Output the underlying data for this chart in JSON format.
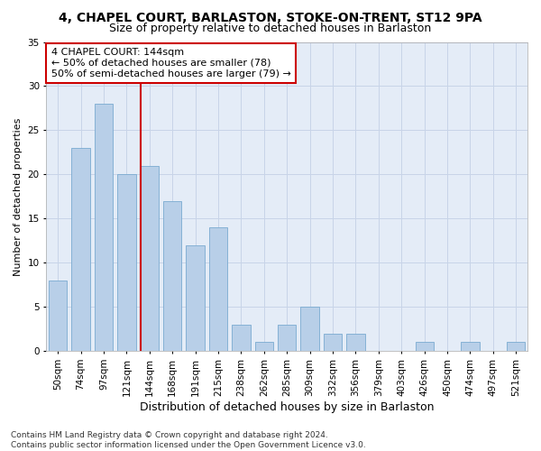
{
  "title1": "4, CHAPEL COURT, BARLASTON, STOKE-ON-TRENT, ST12 9PA",
  "title2": "Size of property relative to detached houses in Barlaston",
  "xlabel": "Distribution of detached houses by size in Barlaston",
  "ylabel": "Number of detached properties",
  "categories": [
    "50sqm",
    "74sqm",
    "97sqm",
    "121sqm",
    "144sqm",
    "168sqm",
    "191sqm",
    "215sqm",
    "238sqm",
    "262sqm",
    "285sqm",
    "309sqm",
    "332sqm",
    "356sqm",
    "379sqm",
    "403sqm",
    "426sqm",
    "450sqm",
    "474sqm",
    "497sqm",
    "521sqm"
  ],
  "values": [
    8,
    23,
    28,
    20,
    21,
    17,
    12,
    14,
    3,
    1,
    3,
    5,
    2,
    2,
    0,
    0,
    1,
    0,
    1,
    0,
    1
  ],
  "bar_color": "#b8cfe8",
  "bar_edge_color": "#7aaad0",
  "vline_color": "#cc0000",
  "vline_index": 4,
  "annotation_text": "4 CHAPEL COURT: 144sqm\n← 50% of detached houses are smaller (78)\n50% of semi-detached houses are larger (79) →",
  "annotation_box_facecolor": "#ffffff",
  "annotation_box_edgecolor": "#cc0000",
  "ylim": [
    0,
    35
  ],
  "yticks": [
    0,
    5,
    10,
    15,
    20,
    25,
    30,
    35
  ],
  "grid_color": "#c8d4e8",
  "bg_color": "#e4ecf7",
  "footnote": "Contains HM Land Registry data © Crown copyright and database right 2024.\nContains public sector information licensed under the Open Government Licence v3.0.",
  "title1_fontsize": 10,
  "title2_fontsize": 9,
  "xlabel_fontsize": 9,
  "ylabel_fontsize": 8,
  "tick_fontsize": 7.5,
  "annotation_fontsize": 8,
  "footnote_fontsize": 6.5
}
